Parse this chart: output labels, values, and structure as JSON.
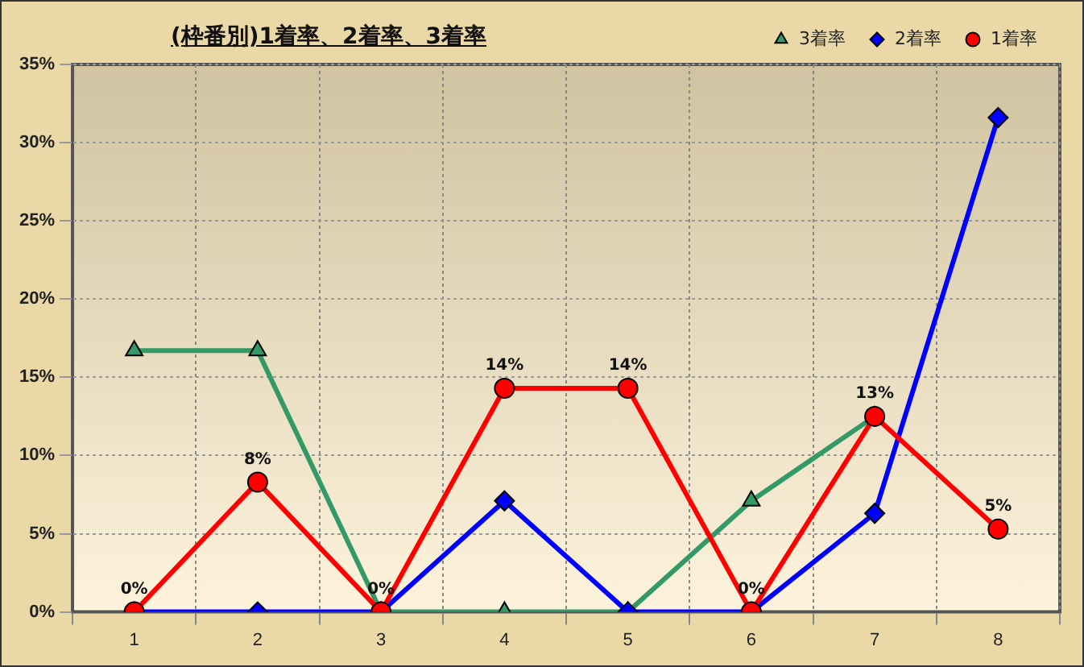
{
  "chart_data": {
    "type": "line",
    "title": "(枠番別)1着率、2着率、3着率",
    "categories": [
      "1",
      "2",
      "3",
      "4",
      "5",
      "6",
      "7",
      "8"
    ],
    "series": [
      {
        "name": "3着率",
        "color": "#339966",
        "marker": "triangle",
        "values": [
          16.7,
          16.7,
          0,
          0,
          0,
          7.1,
          12.5,
          null
        ]
      },
      {
        "name": "2着率",
        "color": "#0000ff",
        "marker": "diamond",
        "values": [
          0,
          0,
          0,
          7.1,
          0,
          0,
          6.3,
          31.6
        ]
      },
      {
        "name": "1着率",
        "color": "#ff0000",
        "marker": "circle",
        "values": [
          0,
          8.3,
          0,
          14.3,
          14.3,
          0,
          12.5,
          5.3
        ],
        "value_labels": [
          "0%",
          "8%",
          "0%",
          "14%",
          "14%",
          "0%",
          "13%",
          "5%"
        ]
      }
    ],
    "ylim": [
      0,
      35
    ],
    "yticks": [
      {
        "value": 0,
        "label": "0%"
      },
      {
        "value": 5,
        "label": "5%"
      },
      {
        "value": 10,
        "label": "10%"
      },
      {
        "value": 15,
        "label": "15%"
      },
      {
        "value": 20,
        "label": "20%"
      },
      {
        "value": 25,
        "label": "25%"
      },
      {
        "value": 30,
        "label": "30%"
      },
      {
        "value": 35,
        "label": "35%"
      }
    ],
    "grid": true,
    "legend": "top right",
    "line_style": "solid"
  }
}
